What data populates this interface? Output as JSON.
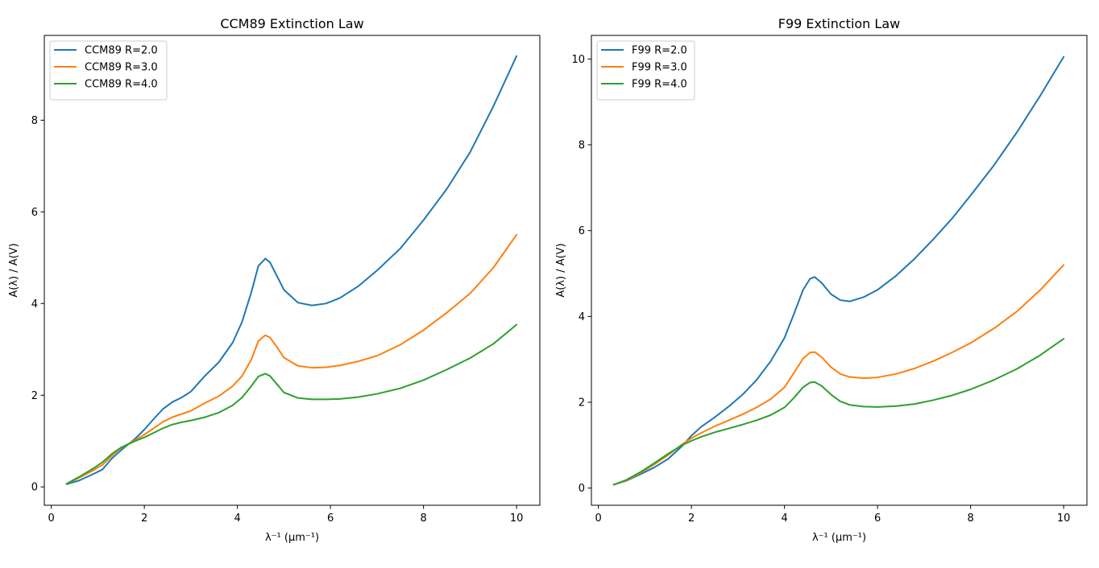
{
  "colors": {
    "blue": "#1f77b4",
    "orange": "#ff7f0e",
    "green": "#2ca02c"
  },
  "chart_data": [
    {
      "type": "line",
      "title": "CCM89 Extinction Law",
      "xlabel": "λ⁻¹ (μm⁻¹)",
      "ylabel": "A(λ) / A(V)",
      "xlim": [
        -0.15,
        10.5
      ],
      "ylim": [
        -0.4,
        9.85
      ],
      "xticks": [
        "0",
        "2",
        "4",
        "6",
        "8",
        "10"
      ],
      "yticks": [
        "0",
        "2",
        "4",
        "6",
        "8"
      ],
      "grid": false,
      "legend": "top-left",
      "series": [
        {
          "name": "CCM89 R=2.0",
          "color": "#1f77b4",
          "x": [
            0.33,
            0.6,
            0.9,
            1.1,
            1.3,
            1.5,
            1.8,
            2.0,
            2.2,
            2.4,
            2.6,
            2.8,
            3.0,
            3.3,
            3.6,
            3.9,
            4.1,
            4.3,
            4.45,
            4.6,
            4.7,
            4.85,
            5.0,
            5.3,
            5.6,
            5.9,
            6.2,
            6.6,
            7.0,
            7.5,
            8.0,
            8.5,
            9.0,
            9.5,
            10.0
          ],
          "y": [
            0.06,
            0.14,
            0.28,
            0.38,
            0.62,
            0.8,
            1.05,
            1.25,
            1.48,
            1.7,
            1.85,
            1.95,
            2.08,
            2.42,
            2.72,
            3.15,
            3.6,
            4.25,
            4.82,
            4.98,
            4.9,
            4.6,
            4.3,
            4.02,
            3.96,
            4.0,
            4.12,
            4.38,
            4.72,
            5.2,
            5.82,
            6.5,
            7.3,
            8.3,
            9.4
          ]
        },
        {
          "name": "CCM89 R=3.0",
          "color": "#ff7f0e",
          "x": [
            0.33,
            0.6,
            0.9,
            1.1,
            1.3,
            1.5,
            1.8,
            2.0,
            2.2,
            2.4,
            2.6,
            2.8,
            3.0,
            3.3,
            3.6,
            3.9,
            4.1,
            4.3,
            4.45,
            4.6,
            4.7,
            4.85,
            5.0,
            5.3,
            5.6,
            5.9,
            6.2,
            6.6,
            7.0,
            7.5,
            8.0,
            8.5,
            9.0,
            9.5,
            10.0
          ],
          "y": [
            0.07,
            0.2,
            0.36,
            0.48,
            0.68,
            0.85,
            1.02,
            1.14,
            1.28,
            1.42,
            1.52,
            1.59,
            1.66,
            1.83,
            1.98,
            2.2,
            2.42,
            2.78,
            3.18,
            3.31,
            3.26,
            3.05,
            2.82,
            2.64,
            2.6,
            2.61,
            2.65,
            2.74,
            2.86,
            3.1,
            3.42,
            3.8,
            4.22,
            4.78,
            5.5
          ]
        },
        {
          "name": "CCM89 R=4.0",
          "color": "#2ca02c",
          "x": [
            0.33,
            0.6,
            0.9,
            1.1,
            1.3,
            1.5,
            1.8,
            2.0,
            2.2,
            2.4,
            2.6,
            2.8,
            3.0,
            3.3,
            3.6,
            3.9,
            4.1,
            4.3,
            4.45,
            4.6,
            4.7,
            4.85,
            5.0,
            5.3,
            5.6,
            5.9,
            6.2,
            6.6,
            7.0,
            7.5,
            8.0,
            8.5,
            9.0,
            9.5,
            10.0
          ],
          "y": [
            0.07,
            0.22,
            0.4,
            0.54,
            0.72,
            0.86,
            1.0,
            1.08,
            1.18,
            1.28,
            1.36,
            1.41,
            1.45,
            1.52,
            1.62,
            1.78,
            1.95,
            2.2,
            2.41,
            2.47,
            2.42,
            2.24,
            2.06,
            1.94,
            1.91,
            1.91,
            1.92,
            1.96,
            2.03,
            2.15,
            2.33,
            2.56,
            2.81,
            3.12,
            3.54
          ]
        }
      ]
    },
    {
      "type": "line",
      "title": "F99 Extinction Law",
      "xlabel": "λ⁻¹ (μm⁻¹)",
      "ylabel": "A(λ) / A(V)",
      "xlim": [
        -0.15,
        10.5
      ],
      "ylim": [
        -0.4,
        10.55
      ],
      "xticks": [
        "0",
        "2",
        "4",
        "6",
        "8",
        "10"
      ],
      "yticks": [
        "0",
        "2",
        "4",
        "6",
        "8",
        "10"
      ],
      "grid": false,
      "legend": "top-left",
      "series": [
        {
          "name": "F99 R=2.0",
          "color": "#1f77b4",
          "x": [
            0.33,
            0.6,
            0.9,
            1.2,
            1.5,
            1.8,
            2.0,
            2.2,
            2.5,
            2.8,
            3.1,
            3.4,
            3.7,
            4.0,
            4.2,
            4.4,
            4.55,
            4.65,
            4.8,
            5.0,
            5.2,
            5.4,
            5.7,
            6.0,
            6.4,
            6.8,
            7.2,
            7.6,
            8.0,
            8.5,
            9.0,
            9.5,
            10.0
          ],
          "y": [
            0.08,
            0.17,
            0.32,
            0.48,
            0.68,
            0.98,
            1.22,
            1.42,
            1.65,
            1.9,
            2.18,
            2.52,
            2.95,
            3.5,
            4.05,
            4.62,
            4.88,
            4.92,
            4.78,
            4.52,
            4.38,
            4.35,
            4.45,
            4.62,
            4.95,
            5.35,
            5.8,
            6.28,
            6.82,
            7.52,
            8.3,
            9.15,
            10.05
          ]
        },
        {
          "name": "F99 R=3.0",
          "color": "#ff7f0e",
          "x": [
            0.33,
            0.6,
            0.9,
            1.2,
            1.5,
            1.8,
            2.0,
            2.2,
            2.5,
            2.8,
            3.1,
            3.4,
            3.7,
            4.0,
            4.2,
            4.4,
            4.55,
            4.65,
            4.8,
            5.0,
            5.2,
            5.4,
            5.7,
            6.0,
            6.4,
            6.8,
            7.2,
            7.6,
            8.0,
            8.5,
            9.0,
            9.5,
            10.0
          ],
          "y": [
            0.08,
            0.18,
            0.35,
            0.55,
            0.77,
            1.02,
            1.16,
            1.28,
            1.44,
            1.58,
            1.72,
            1.88,
            2.07,
            2.35,
            2.68,
            3.02,
            3.16,
            3.17,
            3.05,
            2.82,
            2.66,
            2.59,
            2.56,
            2.58,
            2.66,
            2.79,
            2.96,
            3.16,
            3.38,
            3.72,
            4.12,
            4.62,
            5.2
          ]
        },
        {
          "name": "F99 R=4.0",
          "color": "#2ca02c",
          "x": [
            0.33,
            0.6,
            0.9,
            1.2,
            1.5,
            1.8,
            2.0,
            2.2,
            2.5,
            2.8,
            3.1,
            3.4,
            3.7,
            4.0,
            4.2,
            4.4,
            4.55,
            4.65,
            4.8,
            5.0,
            5.2,
            5.4,
            5.7,
            6.0,
            6.4,
            6.8,
            7.2,
            7.6,
            8.0,
            8.5,
            9.0,
            9.5,
            10.0
          ],
          "y": [
            0.08,
            0.19,
            0.37,
            0.58,
            0.8,
            1.0,
            1.1,
            1.19,
            1.3,
            1.39,
            1.48,
            1.58,
            1.7,
            1.88,
            2.1,
            2.35,
            2.46,
            2.47,
            2.38,
            2.18,
            2.02,
            1.94,
            1.9,
            1.89,
            1.91,
            1.96,
            2.05,
            2.16,
            2.3,
            2.52,
            2.78,
            3.1,
            3.48
          ]
        }
      ]
    }
  ]
}
